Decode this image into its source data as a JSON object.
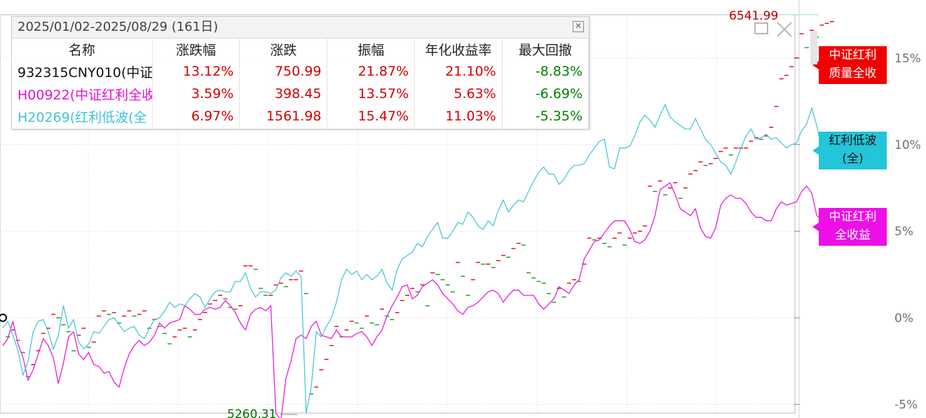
{
  "colors": {
    "red": "#e8001c",
    "magenta": "#e80ed6",
    "cyan": "#3fc3d6",
    "up_text": "#d40000",
    "down_text": "#008000",
    "grid": "#cfcfcf",
    "axis_text": "#707070"
  },
  "stats_panel": {
    "title": "2025/01/02-2025/08/29 (161日)",
    "close_icon": "close-icon",
    "columns": [
      "名称",
      "涨跌幅",
      "涨跌",
      "振幅",
      "年化收益率",
      "最大回撤"
    ],
    "rows": [
      {
        "name": "932315CNY010(中证",
        "color": "#111111",
        "change_pct": "13.12%",
        "change": "750.99",
        "amplitude": "21.87%",
        "annualized": "21.10%",
        "max_drawdown": "-8.83%"
      },
      {
        "name": "H00922(中证红利全收",
        "color": "#e80ed6",
        "change_pct": "3.59%",
        "change": "398.45",
        "amplitude": "13.57%",
        "annualized": "5.63%",
        "max_drawdown": "-6.69%"
      },
      {
        "name": "H20269(红利低波(全",
        "color": "#3fc3d6",
        "change_pct": "6.97%",
        "change": "1561.98",
        "amplitude": "15.47%",
        "annualized": "11.03%",
        "max_drawdown": "-5.35%"
      }
    ]
  },
  "window_controls": {
    "maximize_icon": "maximize-icon",
    "close_icon": "close-icon"
  },
  "series_tags": [
    {
      "label": "中证红利\n质量全收",
      "bg": "#f00000",
      "fg": "#ffffff"
    },
    {
      "label": "红利低波\n(全)",
      "bg": "#22c6d8",
      "fg": "#111111"
    },
    {
      "label": "中证红利\n全收益",
      "bg": "#ee0ee6",
      "fg": "#ffffff"
    }
  ],
  "chart_data": {
    "type": "line",
    "x_range": [
      "2025/01/02",
      "2025/08/29"
    ],
    "y_unit": "%",
    "y_ticks": [
      "15%",
      "10%",
      "5%",
      "0%",
      "-5%"
    ],
    "y_tick_values": [
      15,
      10,
      5,
      0,
      -5
    ],
    "ylim": [
      -5.5,
      17.5
    ],
    "n_points": 161,
    "grid": true,
    "max_label": "6541.99",
    "min_label": "5260.31",
    "series": [
      {
        "color": "#e8001c",
        "style": "dash",
        "values": [
          -0.9,
          -1.1,
          -0.7,
          -1.3,
          -2.0,
          -3.4,
          -2.7,
          -1.9,
          -0.9,
          -0.6,
          0.2,
          0.0,
          -0.4,
          -0.8,
          -1.9,
          -1.0,
          -0.6,
          -1.7,
          -1.4,
          0.1,
          0.4,
          0.2,
          0.3,
          -0.3,
          0.1,
          0.4,
          0.1,
          0.2,
          0.4,
          -0.6,
          -0.1,
          -0.5,
          -0.9,
          -1.5,
          -1.1,
          -0.7,
          -0.6,
          -1.1,
          -0.7,
          -0.1,
          0.3,
          0.8,
          1.0,
          1.3,
          1.1,
          0.6,
          0.5,
          0.7,
          3.0,
          3.0,
          2.8,
          1.7,
          1.3,
          1.3,
          1.9,
          2.0,
          1.8,
          2.2,
          2.2,
          2.7,
          1.4,
          -4.4,
          -4.0,
          -3.0,
          -2.4,
          -1.6,
          -0.5,
          -1.1,
          -0.7,
          -0.2,
          -0.3,
          -0.6,
          0.1,
          -0.3,
          -0.4,
          0.5,
          0.1,
          -0.1,
          0.3,
          1.0,
          1.3,
          1.7,
          1.5,
          1.9,
          0.7,
          2.6,
          2.5,
          2.2,
          1.9,
          1.5,
          3.2,
          2.4,
          1.3,
          2.2,
          3.2,
          3.1,
          3.1,
          2.9,
          3.3,
          3.6,
          3.5,
          4.0,
          4.3,
          4.2,
          2.6,
          2.3,
          2.1,
          2.0,
          1.4,
          0.9,
          1.7,
          1.2,
          2.0,
          2.2,
          2.1,
          3.1,
          4.6,
          4.5,
          4.6,
          4.3,
          4.1,
          4.6,
          4.9,
          4.2,
          4.6,
          4.9,
          5.0,
          5.3,
          7.6,
          7.3,
          7.9,
          7.1,
          7.5,
          7.8,
          6.9,
          7.5,
          8.3,
          8.5,
          9.0,
          8.8,
          8.9,
          9.2,
          9.6,
          9.8,
          9.4,
          9.8,
          9.8,
          9.8,
          10.2,
          10.4,
          10.3,
          10.5,
          11.0,
          12.2,
          13.8,
          14.0,
          14.5,
          15.0,
          16.4,
          15.6,
          16.6,
          16.2,
          16.9,
          17.0,
          17.1
        ]
      },
      {
        "color": "#e80ed6",
        "style": "line",
        "values": [
          -1.6,
          -1.2,
          -0.2,
          -1.5,
          -2.3,
          -3.6,
          -3.0,
          -2.1,
          -1.2,
          -1.6,
          -2.3,
          -3.8,
          -2.6,
          -1.1,
          -0.8,
          -2.1,
          -2.4,
          -2.0,
          -2.7,
          -2.8,
          -3.2,
          -3.1,
          -3.7,
          -4.0,
          -2.9,
          -2.1,
          -1.6,
          -1.3,
          -1.6,
          -1.4,
          -1.0,
          -0.3,
          -0.6,
          -0.3,
          -0.2,
          -0.1,
          0.7,
          0.5,
          0.2,
          0.2,
          0.5,
          0.6,
          0.5,
          0.6,
          1.0,
          0.7,
          0.3,
          -0.3,
          -0.7,
          0.2,
          0.5,
          0.6,
          0.4,
          0.7,
          -5.5,
          -5.9,
          -3.5,
          -2.5,
          -1.2,
          -1.0,
          -1.2,
          -0.5,
          -0.2,
          -1.0,
          -1.1,
          -1.2,
          -0.7,
          -1.1,
          -1.1,
          -1.1,
          -0.9,
          -0.8,
          -1.1,
          -1.6,
          -1.1,
          -0.7,
          0.1,
          0.7,
          1.2,
          1.8,
          1.9,
          1.1,
          1.3,
          1.8,
          2.0,
          2.2,
          1.9,
          1.4,
          1.1,
          0.8,
          0.4,
          0.2,
          0.6,
          0.7,
          0.9,
          1.2,
          1.5,
          1.6,
          1.4,
          0.9,
          1.3,
          1.6,
          1.6,
          1.3,
          1.3,
          1.3,
          0.8,
          0.5,
          0.8,
          1.1,
          1.8,
          1.6,
          1.4,
          1.9,
          2.2,
          3.4,
          3.9,
          4.4,
          4.5,
          4.9,
          5.3,
          5.6,
          5.6,
          5.6,
          5.1,
          4.4,
          4.3,
          4.5,
          5.0,
          5.9,
          7.4,
          7.6,
          7.8,
          7.1,
          6.3,
          6.1,
          5.9,
          6.3,
          5.2,
          4.7,
          4.6,
          5.2,
          6.5,
          6.9,
          7.1,
          6.9,
          6.9,
          6.6,
          6.1,
          5.8,
          5.8,
          5.6,
          5.6,
          6.3,
          6.7,
          6.5,
          6.6,
          6.7,
          7.3,
          7.6,
          7.2,
          5.9,
          5.7,
          5.7,
          5.4
        ]
      },
      {
        "color": "#3fc3d6",
        "style": "line",
        "values": [
          -0.6,
          -0.2,
          -1.0,
          -1.9,
          -3.3,
          -2.5,
          -0.8,
          -0.2,
          -0.1,
          -0.8,
          -1.8,
          -1.0,
          0.7,
          -0.6,
          -0.1,
          -1.4,
          -1.8,
          -1.5,
          -0.8,
          -0.9,
          -0.5,
          -0.1,
          0.0,
          -0.4,
          -0.8,
          -0.6,
          -0.5,
          -1.0,
          -1.2,
          -0.6,
          -0.1,
          0.0,
          0.4,
          0.9,
          0.6,
          0.8,
          0.7,
          1.1,
          1.4,
          1.2,
          0.6,
          1.1,
          1.5,
          1.6,
          1.5,
          1.5,
          2.1,
          2.1,
          2.6,
          1.7,
          1.2,
          1.5,
          1.5,
          1.4,
          1.6,
          2.3,
          2.6,
          2.4,
          2.7,
          2.4,
          -5.5,
          -4.0,
          -0.8,
          -1.1,
          -0.5,
          0.0,
          0.9,
          2.2,
          2.8,
          2.5,
          2.7,
          2.2,
          2.5,
          2.2,
          2.4,
          2.8,
          2.0,
          1.6,
          2.8,
          3.4,
          3.6,
          3.8,
          4.3,
          4.1,
          4.7,
          5.1,
          5.5,
          4.6,
          4.6,
          5.0,
          5.5,
          5.4,
          6.1,
          5.8,
          5.3,
          5.1,
          5.6,
          5.3,
          6.2,
          6.8,
          6.1,
          6.5,
          6.8,
          6.7,
          7.3,
          7.9,
          8.4,
          8.7,
          8.3,
          8.3,
          7.7,
          8.0,
          8.5,
          8.8,
          8.8,
          8.9,
          9.4,
          9.8,
          10.2,
          10.3,
          8.7,
          8.6,
          9.8,
          9.8,
          9.9,
          10.5,
          11.3,
          11.7,
          11.4,
          11.0,
          11.7,
          12.3,
          11.6,
          11.3,
          11.1,
          10.9,
          10.9,
          11.5,
          10.9,
          10.3,
          10.0,
          9.5,
          9.0,
          8.8,
          8.3,
          9.0,
          9.8,
          10.5,
          10.9,
          10.3,
          10.4,
          10.6,
          10.3,
          10.4,
          10.1,
          9.8,
          10.0,
          10.1,
          10.8,
          11.2,
          12.1,
          11.1,
          9.7,
          9.5,
          10.0,
          9.3,
          9.7
        ]
      }
    ]
  }
}
